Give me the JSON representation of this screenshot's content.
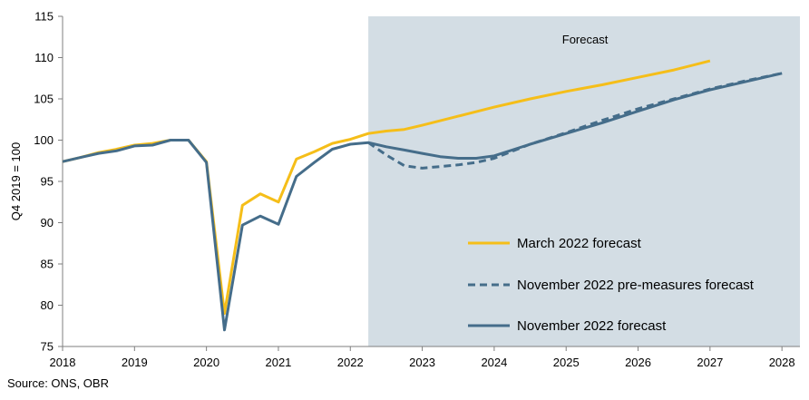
{
  "chart_data": {
    "type": "line",
    "ylabel": "Q4 2019 = 100",
    "xlabel": "",
    "ylim": [
      75,
      115
    ],
    "yticks": [
      75,
      80,
      85,
      90,
      95,
      100,
      105,
      110,
      115
    ],
    "xlim": [
      2018,
      2028.25
    ],
    "xticks": [
      2018,
      2019,
      2020,
      2021,
      2022,
      2023,
      2024,
      2025,
      2026,
      2027,
      2028
    ],
    "grid": false,
    "legend_position": "bottom-right",
    "forecast_region": {
      "start": 2022.25,
      "end": 2028.25,
      "label": "Forecast",
      "color": "#d3dde4"
    },
    "series": [
      {
        "name": "March 2022 forecast",
        "color": "#f5be19",
        "dash": "solid",
        "x": [
          2018,
          2018.25,
          2018.5,
          2018.75,
          2019,
          2019.25,
          2019.5,
          2019.75,
          2020,
          2020.25,
          2020.5,
          2020.75,
          2021,
          2021.25,
          2021.5,
          2021.75,
          2022,
          2022.25,
          2022.5,
          2022.75,
          2023,
          2023.5,
          2024,
          2024.5,
          2025,
          2025.5,
          2026,
          2026.5,
          2027
        ],
        "values": [
          97.4,
          97.9,
          98.5,
          98.9,
          99.4,
          99.6,
          100.0,
          100.0,
          97.4,
          79.0,
          92.1,
          93.5,
          92.5,
          97.7,
          98.6,
          99.6,
          100.1,
          100.8,
          101.1,
          101.3,
          101.8,
          102.9,
          104.0,
          105.0,
          105.9,
          106.7,
          107.6,
          108.5,
          109.6
        ]
      },
      {
        "name": "November 2022 pre-measures forecast",
        "color": "#456d8a",
        "dash": "dashed",
        "x": [
          2022.25,
          2022.5,
          2022.75,
          2023,
          2023.25,
          2023.5,
          2023.75,
          2024,
          2024.5,
          2025,
          2025.5,
          2026,
          2026.5,
          2027,
          2027.5,
          2028
        ],
        "values": [
          99.7,
          98.2,
          96.9,
          96.6,
          96.8,
          97.0,
          97.3,
          97.8,
          99.5,
          100.9,
          102.4,
          103.8,
          105.0,
          106.2,
          107.2,
          108.1
        ]
      },
      {
        "name": "November 2022 forecast",
        "color": "#456d8a",
        "dash": "solid",
        "x": [
          2018,
          2018.25,
          2018.5,
          2018.75,
          2019,
          2019.25,
          2019.5,
          2019.75,
          2020,
          2020.25,
          2020.5,
          2020.75,
          2021,
          2021.25,
          2021.5,
          2021.75,
          2022,
          2022.25,
          2022.5,
          2022.75,
          2023,
          2023.25,
          2023.5,
          2023.75,
          2024,
          2024.5,
          2025,
          2025.5,
          2026,
          2026.5,
          2027,
          2027.5,
          2028
        ],
        "values": [
          97.4,
          97.9,
          98.4,
          98.7,
          99.3,
          99.4,
          100.0,
          100.0,
          97.3,
          77.0,
          89.7,
          90.8,
          89.8,
          95.6,
          97.3,
          98.9,
          99.5,
          99.7,
          99.2,
          98.8,
          98.4,
          98.0,
          97.8,
          97.8,
          98.1,
          99.5,
          100.8,
          102.1,
          103.5,
          104.9,
          106.1,
          107.1,
          108.1
        ]
      }
    ]
  },
  "source_text": "Source: ONS, OBR"
}
